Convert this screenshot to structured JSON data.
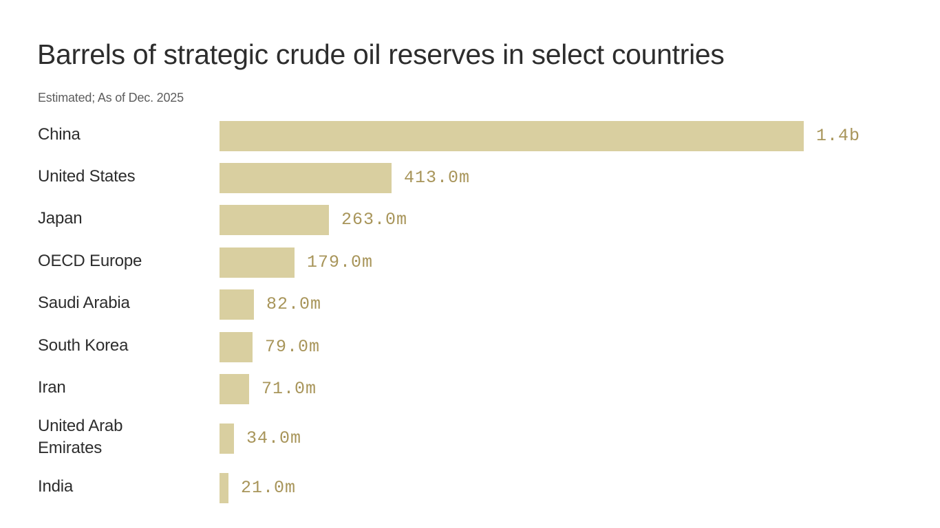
{
  "chart": {
    "title": "Barrels of strategic crude oil reserves in select countries",
    "subtitle": "Estimated; As of Dec. 2025"
  },
  "colors": {
    "bar": "#d9cfa0",
    "value_label": "#a8955a",
    "text": "#2d2d2d"
  },
  "rows": [
    {
      "label": "China",
      "value_label": "1.4b",
      "value": 1400
    },
    {
      "label": "United States",
      "value_label": "413.0m",
      "value": 413
    },
    {
      "label": "Japan",
      "value_label": "263.0m",
      "value": 263
    },
    {
      "label": "OECD Europe",
      "value_label": "179.0m",
      "value": 179
    },
    {
      "label": "Saudi Arabia",
      "value_label": "82.0m",
      "value": 82
    },
    {
      "label": "South Korea",
      "value_label": "79.0m",
      "value": 79
    },
    {
      "label": "Iran",
      "value_label": "71.0m",
      "value": 71
    },
    {
      "label": "United Arab Emirates",
      "value_label": "34.0m",
      "value": 34
    },
    {
      "label": "India",
      "value_label": "21.0m",
      "value": 21
    }
  ],
  "chart_data": {
    "type": "bar",
    "orientation": "horizontal",
    "title": "Barrels of strategic crude oil reserves in select countries",
    "subtitle": "Estimated; As of Dec. 2025",
    "categories": [
      "China",
      "United States",
      "Japan",
      "OECD Europe",
      "Saudi Arabia",
      "South Korea",
      "Iran",
      "United Arab Emirates",
      "India"
    ],
    "values": [
      1400,
      413,
      263,
      179,
      82,
      79,
      71,
      34,
      21
    ],
    "unit": "million barrels",
    "data_labels": [
      "1.4b",
      "413.0m",
      "263.0m",
      "179.0m",
      "82.0m",
      "79.0m",
      "71.0m",
      "34.0m",
      "21.0m"
    ],
    "xlabel": "",
    "ylabel": "",
    "grid": false,
    "legend": null
  }
}
